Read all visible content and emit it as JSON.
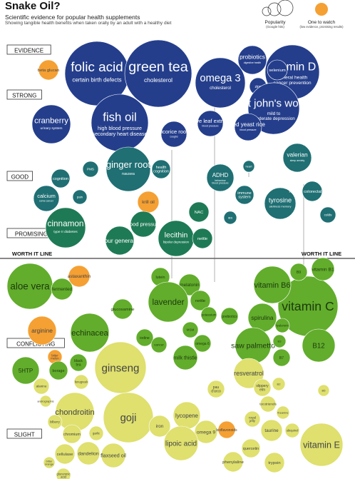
{
  "header": {
    "title": "Snake Oil?",
    "subtitle": "Scientific evidence for popular health supplements",
    "subtitle2": "Showing tangible health benefits when taken orally by an adult with a healthy diet"
  },
  "legend": {
    "popularity_label": "Popularity",
    "popularity_sub": "(Google hits)",
    "watch_label": "One to watch",
    "watch_sub": "(low evidence, promising results)"
  },
  "colors": {
    "watch": "#f5a033",
    "evidence_strong": "#243e8c",
    "evidence_good": "#1f6f73",
    "evidence_promising": "#1e7a55",
    "conflicting": "#62ad2c",
    "slight": "#dfe06e"
  },
  "chart_data": {
    "type": "bubble",
    "evidence_levels": [
      "EVIDENCE",
      "STRONG",
      "GOOD",
      "PROMISING",
      "CONFLICTING",
      "SLIGHT"
    ],
    "worth_it_line_label": "WORTH IT LINE",
    "bubbles": [
      {
        "name": "folic acid",
        "desc": "certain birth defects",
        "level": "strong",
        "popularity": 9
      },
      {
        "name": "green tea",
        "desc": "cholesterol",
        "level": "strong",
        "popularity": 10
      },
      {
        "name": "omega 3",
        "desc": "cholesterol",
        "level": "strong",
        "popularity": 8
      },
      {
        "name": "vitamin D",
        "desc": "general health cancer prevention",
        "level": "strong",
        "popularity": 8
      },
      {
        "name": "probiotics",
        "desc": "digestive health",
        "level": "strong",
        "popularity": 5
      },
      {
        "name": "selenium",
        "desc": "chemo relief",
        "level": "strong",
        "popularity": 4
      },
      {
        "name": "zinc",
        "desc": "cold",
        "level": "strong",
        "popularity": 4
      },
      {
        "name": "st john's wort",
        "desc": "mild to moderate depression",
        "level": "strong",
        "popularity": 8
      },
      {
        "name": "fish oil",
        "desc": "high blood pressure secondary heart disease",
        "level": "strong",
        "popularity": 9
      },
      {
        "name": "cranberry",
        "desc": "urinary system",
        "level": "strong",
        "popularity": 6
      },
      {
        "name": "beta glucan",
        "desc": "boosts everything",
        "level": "strong",
        "popularity": 2,
        "watch": true
      },
      {
        "name": "licorice root",
        "desc": "coughs",
        "level": "strong",
        "popularity": 4
      },
      {
        "name": "olive leaf extract",
        "desc": "blood pressure",
        "level": "strong",
        "popularity": 4
      },
      {
        "name": "red yeast rice",
        "desc": "blood pressure",
        "level": "strong",
        "popularity": 5
      },
      {
        "name": "ginger root",
        "desc": "nausea",
        "level": "good",
        "popularity": 7
      },
      {
        "name": "health cognition",
        "desc": "",
        "level": "good",
        "popularity": 3
      },
      {
        "name": "ADHD",
        "desc": "behaviour blood pressure",
        "level": "good",
        "popularity": 4
      },
      {
        "name": "valerian",
        "desc": "sleep anxiety",
        "level": "good",
        "popularity": 4
      },
      {
        "name": "heart",
        "desc": "",
        "level": "good",
        "popularity": 2
      },
      {
        "name": "PMS",
        "desc": "",
        "level": "good",
        "popularity": 2
      },
      {
        "name": "calcium",
        "desc": "some cancer",
        "level": "good",
        "popularity": 4
      },
      {
        "name": "pain",
        "desc": "",
        "level": "good",
        "popularity": 2
      },
      {
        "name": "cognition",
        "desc": "",
        "level": "good",
        "popularity": 2
      },
      {
        "name": "krill oil",
        "desc": "",
        "level": "good",
        "popularity": 3,
        "watch": true
      },
      {
        "name": "tyrosine",
        "desc": "alertness memory",
        "level": "good",
        "popularity": 4
      },
      {
        "name": "heart & colorectal cancer",
        "desc": "",
        "level": "good",
        "popularity": 3
      },
      {
        "name": "immune system",
        "desc": "",
        "level": "good",
        "popularity": 2
      },
      {
        "name": "IBS",
        "desc": "",
        "level": "good",
        "popularity": 2
      },
      {
        "name": "colds",
        "desc": "",
        "level": "good",
        "popularity": 2
      },
      {
        "name": "cinnamon",
        "desc": "type II diabetes",
        "level": "promising",
        "popularity": 6
      },
      {
        "name": "behaviour general health",
        "desc": "",
        "level": "promising",
        "popularity": 4
      },
      {
        "name": "blood pressure",
        "desc": "",
        "level": "promising",
        "popularity": 3
      },
      {
        "name": "lecithin",
        "desc": "bipolar depression",
        "level": "promising",
        "popularity": 6
      },
      {
        "name": "NAC",
        "desc": "mental health",
        "level": "promising",
        "popularity": 3
      },
      {
        "name": "nettle",
        "desc": "urinary system",
        "level": "promising",
        "popularity": 3
      },
      {
        "name": "aloe vera",
        "desc": "",
        "level": "conflicting",
        "popularity": 8
      },
      {
        "name": "fermented",
        "desc": "",
        "level": "conflicting",
        "popularity": 3
      },
      {
        "name": "astaxanthin",
        "desc": "",
        "level": "conflicting",
        "popularity": 3,
        "watch": true
      },
      {
        "name": "milk thistle",
        "desc": "",
        "level": "conflicting",
        "popularity": 3
      },
      {
        "name": "lutein",
        "desc": "",
        "level": "conflicting",
        "popularity": 3
      },
      {
        "name": "melatonin",
        "desc": "",
        "level": "conflicting",
        "popularity": 4
      },
      {
        "name": "lavender",
        "desc": "",
        "level": "conflicting",
        "popularity": 7
      },
      {
        "name": "nettle",
        "desc": "",
        "level": "conflicting",
        "popularity": 5
      },
      {
        "name": "vitamin C",
        "desc": "",
        "level": "conflicting",
        "popularity": 10
      },
      {
        "name": "vitamin B6",
        "desc": "",
        "level": "conflicting",
        "popularity": 8
      },
      {
        "name": "B9",
        "desc": "",
        "level": "conflicting",
        "popularity": 3
      },
      {
        "name": "vitamin B1",
        "desc": "",
        "level": "conflicting",
        "popularity": 4
      },
      {
        "name": "spirulina",
        "desc": "",
        "level": "conflicting",
        "popularity": 5
      },
      {
        "name": "arginine",
        "desc": "",
        "level": "conflicting",
        "popularity": 4,
        "watch": true
      },
      {
        "name": "echinacea",
        "desc": "",
        "level": "conflicting",
        "popularity": 6
      },
      {
        "name": "glucosamine",
        "desc": "",
        "level": "conflicting",
        "popularity": 4
      },
      {
        "name": "iodine",
        "desc": "",
        "level": "conflicting",
        "popularity": 3
      },
      {
        "name": "cancer",
        "desc": "",
        "level": "conflicting",
        "popularity": 2
      },
      {
        "name": "MSM",
        "desc": "",
        "level": "conflicting",
        "popularity": 3
      },
      {
        "name": "omega 6",
        "desc": "",
        "level": "conflicting",
        "popularity": 3
      },
      {
        "name": "potassium",
        "desc": "",
        "level": "conflicting",
        "popularity": 2
      },
      {
        "name": "prebiotics",
        "desc": "",
        "level": "conflicting",
        "popularity": 3
      },
      {
        "name": "saw palmetto",
        "desc": "",
        "level": "conflicting",
        "popularity": 6
      },
      {
        "name": "hyaluronic",
        "desc": "",
        "level": "conflicting",
        "popularity": 2
      },
      {
        "name": "B12",
        "desc": "",
        "level": "conflicting",
        "popularity": 5
      },
      {
        "name": "B7",
        "desc": "",
        "level": "conflicting",
        "popularity": 3
      },
      {
        "name": "B3",
        "desc": "",
        "level": "conflicting",
        "popularity": 2
      },
      {
        "name": "bitter melon",
        "desc": "",
        "level": "conflicting",
        "popularity": 2,
        "watch": true
      },
      {
        "name": "borage",
        "desc": "",
        "level": "conflicting",
        "popularity": 3
      },
      {
        "name": "black tea",
        "desc": "",
        "level": "conflicting",
        "popularity": 3
      },
      {
        "name": "5HTP",
        "desc": "",
        "level": "conflicting",
        "popularity": 5
      },
      {
        "name": "ginseng",
        "desc": "",
        "level": "slight",
        "popularity": 9
      },
      {
        "name": "fenugreek",
        "desc": "",
        "level": "slight",
        "popularity": 2
      },
      {
        "name": "resveratrol",
        "desc": "",
        "level": "slight",
        "popularity": 4
      },
      {
        "name": "slippery elm",
        "desc": "",
        "level": "slight",
        "popularity": 2
      },
      {
        "name": "B2",
        "desc": "",
        "level": "slight",
        "popularity": 2
      },
      {
        "name": "B5",
        "desc": "",
        "level": "slight",
        "popularity": 2
      },
      {
        "name": "alanine",
        "desc": "",
        "level": "slight",
        "popularity": 2
      },
      {
        "name": "andrographis",
        "desc": "",
        "level": "slight",
        "popularity": 2
      },
      {
        "name": "chondroitin",
        "desc": "",
        "level": "slight",
        "popularity": 7
      },
      {
        "name": "goji",
        "desc": "",
        "level": "slight",
        "popularity": 8
      },
      {
        "name": "lycopene",
        "desc": "",
        "level": "slight",
        "popularity": 4
      },
      {
        "name": "pau d'arco",
        "desc": "",
        "level": "slight",
        "popularity": 2
      },
      {
        "name": "bilberry",
        "desc": "",
        "level": "slight",
        "popularity": 2
      },
      {
        "name": "chromium",
        "desc": "",
        "level": "slight",
        "popularity": 3
      },
      {
        "name": "garlic",
        "desc": "",
        "level": "slight",
        "popularity": 3
      },
      {
        "name": "iron",
        "desc": "",
        "level": "slight",
        "popularity": 5
      },
      {
        "name": "omega 9",
        "desc": "",
        "level": "slight",
        "popularity": 4
      },
      {
        "name": "bioflavonoids",
        "desc": "",
        "level": "slight",
        "popularity": 2,
        "watch": true
      },
      {
        "name": "royal jelly",
        "desc": "",
        "level": "slight",
        "popularity": 2
      },
      {
        "name": "taurine",
        "desc": "",
        "level": "slight",
        "popularity": 4
      },
      {
        "name": "tocotrienols",
        "desc": "",
        "level": "slight",
        "popularity": 2
      },
      {
        "name": "theanine",
        "desc": "",
        "level": "slight",
        "popularity": 2
      },
      {
        "name": "ubiquinol",
        "desc": "",
        "level": "slight",
        "popularity": 2
      },
      {
        "name": "vitamin E",
        "desc": "",
        "level": "slight",
        "popularity": 7
      },
      {
        "name": "lipoic acid",
        "desc": "",
        "level": "slight",
        "popularity": 5
      },
      {
        "name": "quercetin",
        "desc": "",
        "level": "slight",
        "popularity": 3
      },
      {
        "name": "phenylaline",
        "desc": "",
        "level": "slight",
        "popularity": 3
      },
      {
        "name": "trypsin",
        "desc": "",
        "level": "slight",
        "popularity": 3
      },
      {
        "name": "cellulase",
        "desc": "",
        "level": "slight",
        "popularity": 3
      },
      {
        "name": "dandelion",
        "desc": "",
        "level": "slight",
        "popularity": 4
      },
      {
        "name": "flaxseed oil",
        "desc": "",
        "level": "slight",
        "popularity": 5
      },
      {
        "name": "bitter orange",
        "desc": "",
        "level": "slight",
        "popularity": 2
      },
      {
        "name": "glucuronic acid",
        "desc": "",
        "level": "slight",
        "popularity": 2
      }
    ]
  }
}
